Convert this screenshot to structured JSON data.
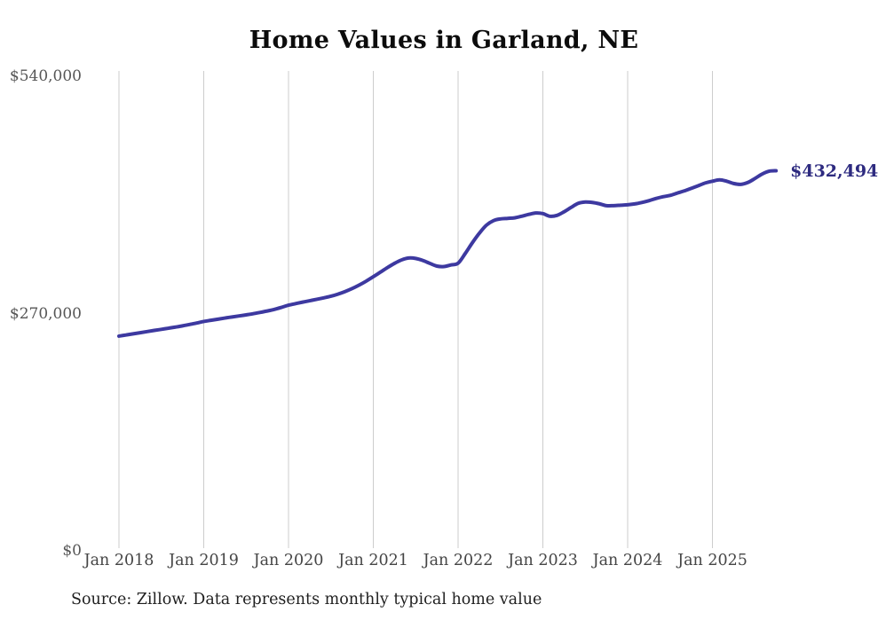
{
  "title": "Home Values in Garland, NE",
  "source_note": "Source: Zillow. Data represents monthly typical home value",
  "colors": {
    "line": "#3d39a0",
    "end_label": "#2e2b80",
    "gridline": "#cdcdcd",
    "y_tick_text": "#565656",
    "x_tick_text": "#454545",
    "title_text": "#0c0c0c",
    "source_text": "#1f1f1f",
    "background": "#ffffff"
  },
  "chart_data": {
    "type": "line",
    "title": "Home Values in Garland, NE",
    "xlabel": "",
    "ylabel": "",
    "frequency": "monthly",
    "x_start": "2018-01",
    "x_end": "2025-10",
    "ylim": [
      0,
      540000
    ],
    "grid": "vertical-only",
    "legend": "none",
    "y_ticks": [
      {
        "value": 0,
        "label": "$0"
      },
      {
        "value": 270000,
        "label": "$270,000"
      },
      {
        "value": 540000,
        "label": "$540,000"
      }
    ],
    "x_tick_labels": [
      "Jan 2018",
      "Jan 2019",
      "Jan 2020",
      "Jan 2021",
      "Jan 2022",
      "Jan 2023",
      "Jan 2024",
      "Jan 2025"
    ],
    "x_tick_month_indices": [
      0,
      12,
      24,
      36,
      48,
      60,
      72,
      84
    ],
    "last_value_label": "$432,494",
    "last_value": 432494,
    "series": [
      {
        "name": "Typical home value",
        "values": [
          244300,
          245600,
          246900,
          248200,
          249500,
          250800,
          252000,
          253300,
          254600,
          256000,
          257600,
          259200,
          261000,
          262300,
          263600,
          264900,
          266100,
          267300,
          268500,
          269800,
          271300,
          272900,
          274700,
          277000,
          279500,
          281300,
          283000,
          284600,
          286200,
          287900,
          289700,
          292100,
          295000,
          298400,
          302400,
          306900,
          311900,
          317100,
          322300,
          327100,
          331000,
          333200,
          332700,
          330400,
          327100,
          324000,
          323500,
          325300,
          327300,
          338200,
          350300,
          361300,
          370500,
          375700,
          377700,
          378300,
          378900,
          380700,
          382800,
          384400,
          383700,
          380700,
          381700,
          385800,
          390800,
          395400,
          396900,
          396400,
          394900,
          392800,
          392800,
          393300,
          393800,
          394800,
          396400,
          398400,
          400900,
          402900,
          404400,
          407000,
          409500,
          412500,
          415500,
          418600,
          420600,
          422100,
          420600,
          418000,
          417000,
          419100,
          423600,
          428600,
          431900,
          432494
        ]
      }
    ]
  }
}
